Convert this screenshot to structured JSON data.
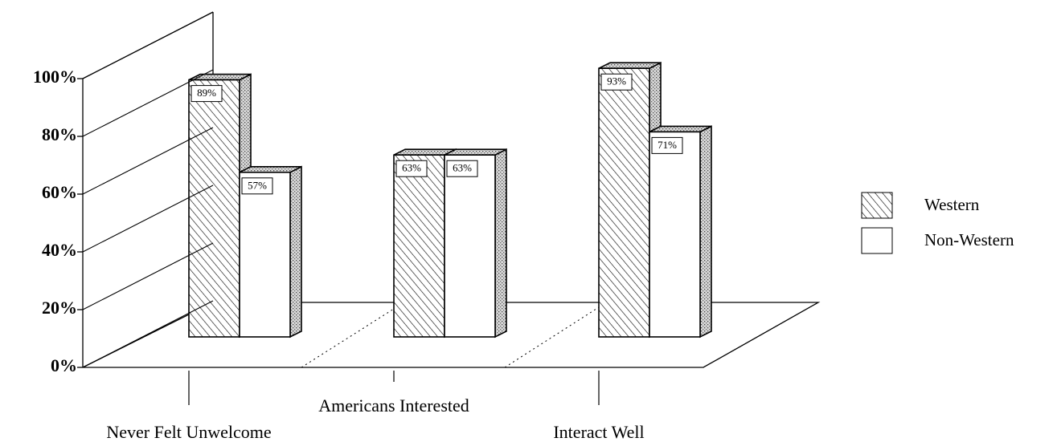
{
  "chart_data": {
    "type": "bar3d",
    "categories": [
      "Never Felt Unwelcome",
      "Americans Interested",
      "Interact Well"
    ],
    "series": [
      {
        "name": "Western",
        "color": "#000000",
        "pattern": "hatch",
        "values": [
          89,
          63,
          93
        ],
        "value_labels": [
          "89%",
          "63%",
          "93%"
        ]
      },
      {
        "name": "Non-Western",
        "color": "#ffffff",
        "pattern": "solid",
        "values": [
          57,
          63,
          71
        ],
        "value_labels": [
          "57%",
          "63%",
          "71%"
        ]
      }
    ],
    "ylim": [
      0,
      100
    ],
    "yticks": [
      {
        "value": 0,
        "label": "0%"
      },
      {
        "value": 20,
        "label": "20%"
      },
      {
        "value": 40,
        "label": "40%"
      },
      {
        "value": 60,
        "label": "60%"
      },
      {
        "value": 80,
        "label": "80%"
      },
      {
        "value": 100,
        "label": "100%"
      }
    ],
    "grid": true,
    "legend": "right"
  }
}
